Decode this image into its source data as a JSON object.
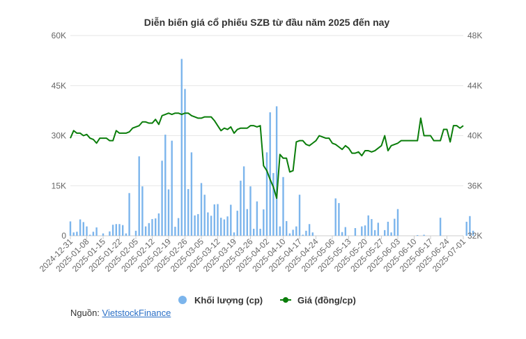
{
  "chart_data": {
    "type": "bar+line",
    "title": "Diễn biến giá cổ phiếu SZB từ đầu năm 2025 đến nay",
    "y_left": {
      "ticks": [
        "0",
        "15K",
        "30K",
        "45K",
        "60K"
      ],
      "range": [
        0,
        60000
      ]
    },
    "y_right": {
      "ticks": [
        "32K",
        "36K",
        "40K",
        "44K",
        "48K"
      ],
      "range": [
        32000,
        48000
      ]
    },
    "x_ticks": [
      "2024-12-31",
      "2025-01-08",
      "2025-01-15",
      "2025-01-22",
      "2025-02-05",
      "2025-02-12",
      "2025-02-19",
      "2025-02-26",
      "2025-03-05",
      "2025-03-12",
      "2025-03-19",
      "2025-03-26",
      "2025-04-02",
      "2025-04-10",
      "2025-04-17",
      "2025-04-24",
      "2025-05-06",
      "2025-05-13",
      "2025-05-20",
      "2025-05-27",
      "2025-06-03",
      "2025-06-10",
      "2025-06-17",
      "2025-06-24",
      "2025-07-01"
    ],
    "x_tick_index": [
      0,
      5,
      10,
      15,
      20,
      25,
      30,
      35,
      40,
      45,
      50,
      55,
      60,
      65,
      70,
      75,
      80,
      85,
      90,
      95,
      100,
      105,
      110,
      115,
      120
    ],
    "series": [
      {
        "name": "Khối lượng (cp)",
        "type": "bar",
        "axis": "left",
        "color": "#7cb5ec",
        "values": [
          4300,
          1000,
          1200,
          4900,
          4100,
          2800,
          300,
          1200,
          2500,
          0,
          700,
          0,
          1300,
          3300,
          3500,
          3500,
          3200,
          700,
          12800,
          0,
          1500,
          23800,
          14800,
          2800,
          3800,
          5000,
          5200,
          6700,
          22500,
          30300,
          13900,
          28500,
          2700,
          5300,
          53000,
          44000,
          14000,
          25000,
          6100,
          6500,
          15800,
          12300,
          7000,
          6000,
          9400,
          9500,
          5400,
          4900,
          5800,
          9300,
          1000,
          7500,
          16500,
          20800,
          8000,
          14800,
          2100,
          10300,
          2100,
          7900,
          25000,
          37000,
          18800,
          38800,
          2800,
          17600,
          4400,
          700,
          1800,
          2800,
          12300,
          300,
          1500,
          3500,
          1000,
          0,
          0,
          0,
          0,
          0,
          0,
          11200,
          9800,
          1100,
          2600,
          0,
          0,
          2300,
          0,
          2800,
          3100,
          6100,
          5000,
          1700,
          3900,
          0,
          1700,
          4200,
          1000,
          5100,
          8000,
          0,
          0,
          0,
          0,
          0,
          200,
          0,
          300,
          0,
          0,
          0,
          0,
          5400,
          0,
          0,
          0,
          0,
          0,
          0,
          0,
          4200,
          5900,
          1500
        ]
      },
      {
        "name": "Giá (đồng/cp)",
        "type": "line",
        "axis": "right",
        "color": "#0a7d0a",
        "values": [
          39800,
          40400,
          40200,
          40200,
          40000,
          40100,
          39800,
          39700,
          39400,
          39800,
          39800,
          39800,
          39600,
          39600,
          40400,
          40200,
          40200,
          40200,
          40300,
          40600,
          40700,
          40800,
          41100,
          41100,
          41000,
          41000,
          41300,
          40900,
          41600,
          41700,
          41800,
          41700,
          41800,
          41800,
          41700,
          41800,
          41800,
          41600,
          41500,
          41400,
          41400,
          41500,
          41500,
          41500,
          41200,
          40800,
          40400,
          40600,
          40500,
          40700,
          40200,
          40500,
          40600,
          40600,
          40600,
          40800,
          40800,
          40700,
          40800,
          37600,
          37200,
          36500,
          35900,
          35000,
          38500,
          38200,
          38200,
          37100,
          37200,
          39500,
          39600,
          39600,
          39300,
          39200,
          39400,
          39600,
          40000,
          39900,
          39800,
          39800,
          39400,
          39300,
          39100,
          38900,
          39200,
          39000,
          38600,
          38600,
          38700,
          38400,
          38800,
          38800,
          38700,
          38800,
          39000,
          39200,
          40000,
          38800,
          39200,
          39300,
          39400,
          39600,
          39600,
          39600,
          39600,
          39600,
          39600,
          41400,
          40000,
          40000,
          40000,
          39600,
          39600,
          39600,
          40500,
          40500,
          39500,
          40800,
          40800,
          40600,
          40800
        ]
      }
    ],
    "legend": {
      "placement": "bottom-center"
    },
    "grid": true
  },
  "source": {
    "prefix": "Nguồn: ",
    "link_text": "VietstockFinance"
  }
}
